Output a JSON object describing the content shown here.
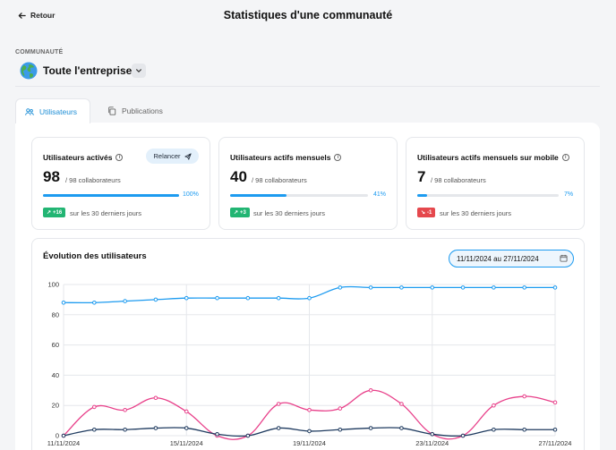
{
  "header": {
    "back_label": "Retour",
    "title": "Statistiques d'une communauté"
  },
  "community": {
    "label": "COMMUNAUTÉ",
    "name": "Toute l'entreprise",
    "icon": "globe-icon"
  },
  "tabs": [
    {
      "label": "Utilisateurs",
      "icon": "users-icon",
      "active": true
    },
    {
      "label": "Publications",
      "icon": "copy-icon",
      "active": false
    }
  ],
  "cards": [
    {
      "title": "Utilisateurs activés",
      "value": "98",
      "sub": "/ 98 collaborateurs",
      "progress": 1.0,
      "pct": "100%",
      "trend": "+16",
      "trend_dir": "up",
      "trend_label": "sur les 30 derniers jours",
      "button": "Relancer"
    },
    {
      "title": "Utilisateurs actifs mensuels",
      "value": "40",
      "sub": "/ 98 collaborateurs",
      "progress": 0.41,
      "pct": "41%",
      "trend": "+3",
      "trend_dir": "up",
      "trend_label": "sur les 30 derniers jours"
    },
    {
      "title": "Utilisateurs actifs mensuels sur mobile",
      "value": "7",
      "sub": "/ 98 collaborateurs",
      "progress": 0.07,
      "pct": "7%",
      "trend": "-1",
      "trend_dir": "down",
      "trend_label": "sur les 30 derniers jours"
    }
  ],
  "chart_section": {
    "title": "Évolution des utilisateurs",
    "date_range": "11/11/2024 au 27/11/2024"
  },
  "chart_data": {
    "type": "line",
    "x": [
      "11/11/2024",
      "12/11/2024",
      "13/11/2024",
      "14/11/2024",
      "15/11/2024",
      "16/11/2024",
      "17/11/2024",
      "18/11/2024",
      "19/11/2024",
      "20/11/2024",
      "21/11/2024",
      "22/11/2024",
      "23/11/2024",
      "24/11/2024",
      "25/11/2024",
      "26/11/2024",
      "27/11/2024"
    ],
    "xticks": [
      "11/11/2024",
      "15/11/2024",
      "19/11/2024",
      "23/11/2024",
      "27/11/2024"
    ],
    "yticks": [
      0,
      20,
      40,
      60,
      80,
      100
    ],
    "ylim": [
      0,
      100
    ],
    "grid": true,
    "series": [
      {
        "color": "#1d9bf0",
        "values": [
          88,
          88,
          89,
          90,
          91,
          91,
          91,
          91,
          91,
          98,
          98,
          98,
          98,
          98,
          98,
          98,
          98
        ]
      },
      {
        "color": "#e8408a",
        "values": [
          0,
          19,
          17,
          25,
          16,
          0,
          0,
          21,
          17,
          18,
          30,
          21,
          1,
          0,
          20,
          26,
          22
        ]
      },
      {
        "color": "#1e3a5f",
        "values": [
          0,
          4,
          4,
          5,
          5,
          1,
          0,
          5,
          3,
          4,
          5,
          5,
          1,
          0,
          4,
          4,
          4
        ]
      }
    ]
  }
}
